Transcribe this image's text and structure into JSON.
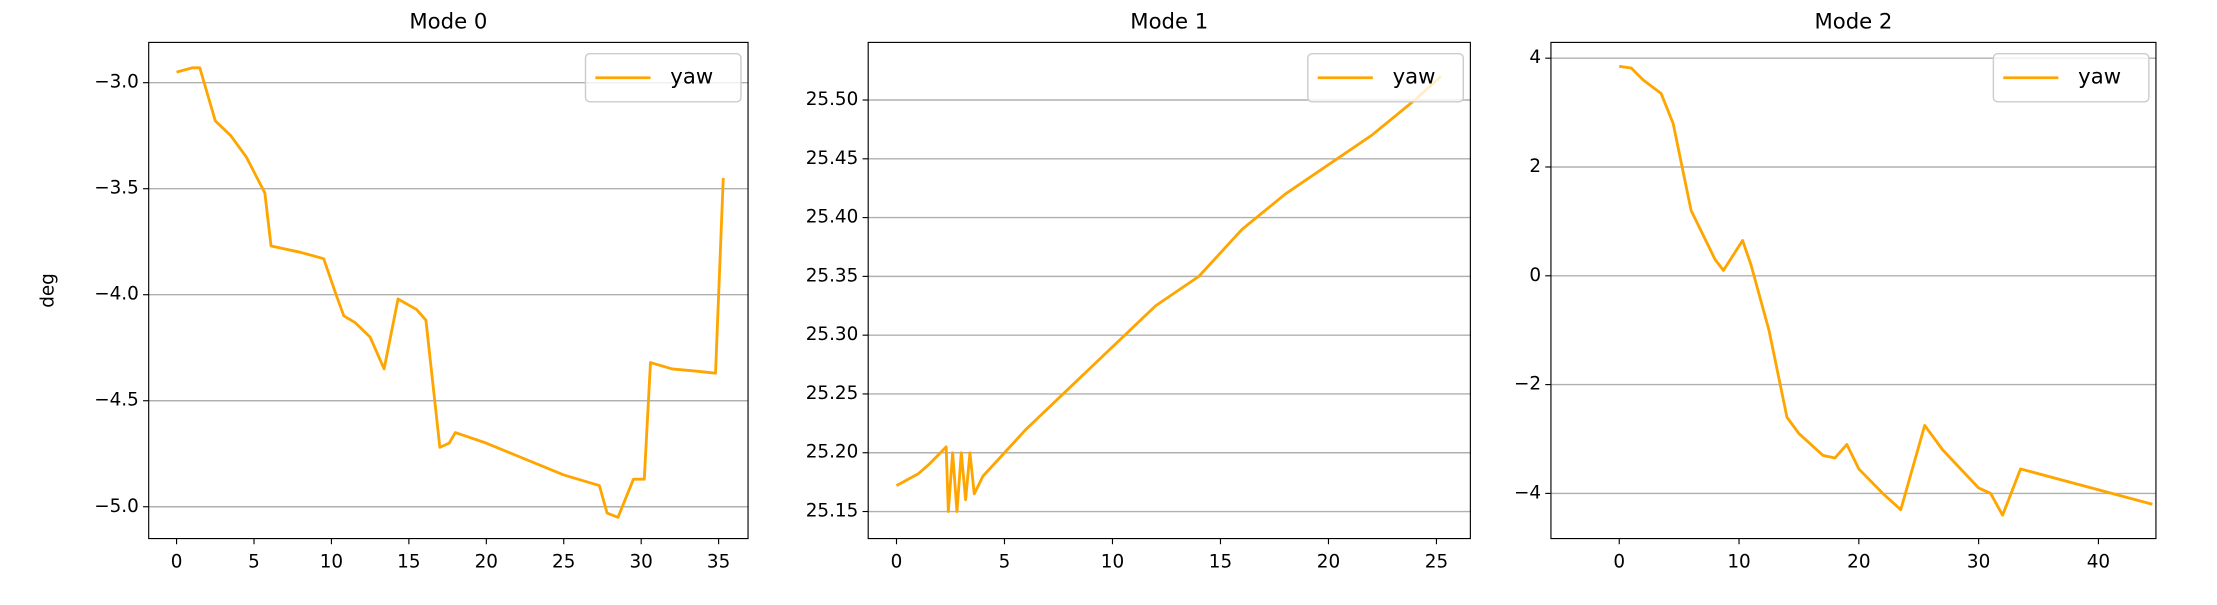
{
  "chart_data": [
    {
      "type": "line",
      "title": "Mode 0",
      "ylabel": "deg",
      "x": [
        0,
        1,
        1.5,
        2.5,
        3.5,
        4.5,
        5.7,
        6.1,
        8,
        9.5,
        10.3,
        10.8,
        11.5,
        12.5,
        13.4,
        14.3,
        15.5,
        16.1,
        17,
        17.6,
        18,
        20,
        22,
        25,
        27.3,
        27.8,
        28.5,
        29.5,
        30.2,
        30.6,
        32,
        33.5,
        34.8,
        35.3
      ],
      "series": [
        {
          "name": "yaw",
          "color": "#ffa500",
          "values": [
            -2.95,
            -2.93,
            -2.93,
            -3.18,
            -3.25,
            -3.35,
            -3.52,
            -3.77,
            -3.8,
            -3.83,
            -4.0,
            -4.1,
            -4.13,
            -4.2,
            -4.35,
            -4.02,
            -4.07,
            -4.12,
            -4.72,
            -4.7,
            -4.65,
            -4.7,
            -4.76,
            -4.85,
            -4.9,
            -5.03,
            -5.05,
            -4.87,
            -4.87,
            -4.32,
            -4.35,
            -4.36,
            -4.37,
            -3.45
          ]
        }
      ],
      "xlim": [
        -1.8,
        36.9
      ],
      "ylim": [
        -5.15,
        -2.81
      ],
      "xticks": [
        0,
        5,
        10,
        15,
        20,
        25,
        30,
        35
      ],
      "yticks": [
        {
          "value": -3.0,
          "label": "−3.0"
        },
        {
          "value": -3.5,
          "label": "−3.5"
        },
        {
          "value": -4.0,
          "label": "−4.0"
        },
        {
          "value": -4.5,
          "label": "−4.5"
        },
        {
          "value": -5.0,
          "label": "−5.0"
        }
      ],
      "grid": "y",
      "legend": "upper right"
    },
    {
      "type": "line",
      "title": "Mode 1",
      "x": [
        0,
        1,
        1.5,
        2.3,
        2.4,
        2.6,
        2.8,
        3,
        3.2,
        3.4,
        3.6,
        4,
        5,
        6,
        8,
        10,
        12,
        14,
        16,
        18,
        20,
        22,
        24,
        25.2
      ],
      "series": [
        {
          "name": "yaw",
          "color": "#ffa500",
          "values": [
            25.172,
            25.182,
            25.19,
            25.205,
            25.15,
            25.2,
            25.15,
            25.2,
            25.16,
            25.2,
            25.165,
            25.18,
            25.2,
            25.22,
            25.255,
            25.29,
            25.325,
            25.35,
            25.39,
            25.42,
            25.445,
            25.47,
            25.5,
            25.52
          ]
        }
      ],
      "xlim": [
        -1.31,
        26.57
      ],
      "ylim": [
        25.127,
        25.549
      ],
      "xticks": [
        0,
        5,
        10,
        15,
        20,
        25
      ],
      "yticks": [
        {
          "value": 25.15,
          "label": "25.15"
        },
        {
          "value": 25.2,
          "label": "25.20"
        },
        25.25,
        {
          "value": 25.3,
          "label": "25.30"
        },
        25.35,
        {
          "value": 25.4,
          "label": "25.40"
        },
        25.45,
        {
          "value": 25.5,
          "label": "25.50"
        }
      ],
      "grid": "y",
      "legend": "upper right"
    },
    {
      "type": "line",
      "title": "Mode 2",
      "x": [
        0,
        1,
        2,
        3.5,
        4.5,
        6,
        8,
        8.7,
        10.3,
        11,
        12.5,
        14,
        15,
        17,
        18,
        19,
        20,
        22,
        23.5,
        25.5,
        27,
        30,
        31,
        32,
        33.5,
        44.5
      ],
      "series": [
        {
          "name": "yaw",
          "color": "#ffa500",
          "values": [
            3.85,
            3.82,
            3.6,
            3.35,
            2.8,
            1.2,
            0.3,
            0.1,
            0.65,
            0.2,
            -1.0,
            -2.6,
            -2.9,
            -3.3,
            -3.35,
            -3.1,
            -3.55,
            -4.0,
            -4.3,
            -2.75,
            -3.2,
            -3.9,
            -4.0,
            -4.4,
            -3.55,
            -4.2
          ]
        }
      ],
      "xlim": [
        -5.7,
        44.8
      ],
      "ylim": [
        -4.83,
        4.29
      ],
      "xticks": [
        0,
        10,
        20,
        30,
        40
      ],
      "yticks": [
        {
          "value": -4,
          "label": "−4"
        },
        {
          "value": -2,
          "label": "−2"
        },
        0,
        2,
        4
      ],
      "grid": "y",
      "legend": "upper right"
    }
  ]
}
